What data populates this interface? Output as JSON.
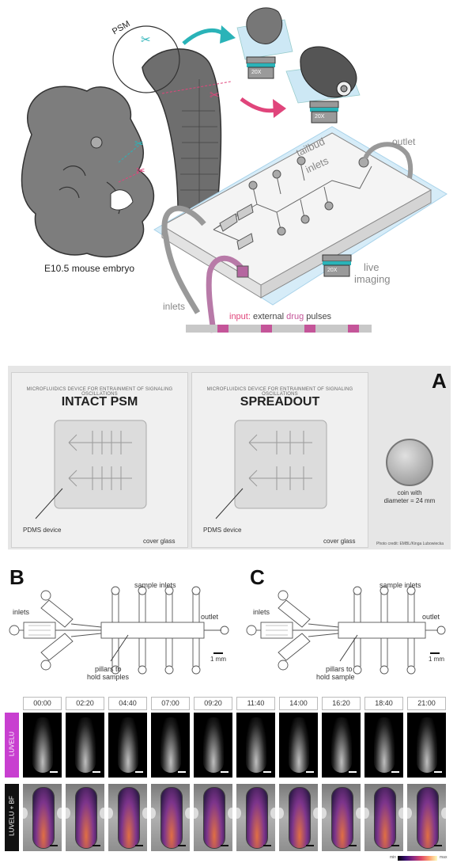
{
  "panel_top": {
    "psm_label": "PSM",
    "embryo_label": "E10.5 mouse embryo",
    "tailbud_label": "tailbud",
    "inlets_label_top": "inlets",
    "outlet_label": "outlet",
    "inlets_label": "inlets",
    "live_label": "live",
    "imaging_label": "imaging",
    "objective_1": "20X",
    "objective_2": "20X",
    "objective_3": "20X",
    "input_prefix": "input:",
    "input_middle": " external ",
    "input_drug": "drug",
    "input_suffix": " pulses",
    "accent_pink": "#e0457b",
    "accent_teal": "#2ab3b8"
  },
  "panel_a": {
    "letter": "A",
    "device1_header": "MICROFLUIDICS DEVICE FOR ENTRAINMENT OF SIGNALING OSCILLATIONS",
    "device1_name": "INTACT PSM",
    "device1_pdms": "PDMS device",
    "device1_cover": "cover glass",
    "device2_header": "MICROFLUIDICS DEVICE FOR ENTRAINMENT OF SIGNALING OSCILLATIONS",
    "device2_name": "SPREADOUT",
    "device2_pdms": "PDMS device",
    "device2_cover": "cover glass",
    "coin_label_1": "coin with",
    "coin_label_2": "diameter = 24 mm",
    "photo_credit": "Photo credit: EMBL/Kinga Lubowiecka"
  },
  "panel_b": {
    "letter": "B",
    "sample_inlets": "sample inlets",
    "inlets": "inlets",
    "outlet": "outlet",
    "scale": "1 mm",
    "pillars_1": "pillars to",
    "pillars_2": "hold samples"
  },
  "panel_c": {
    "letter": "C",
    "sample_inlets": "sample inlets",
    "inlets": "inlets",
    "outlet": "outlet",
    "scale": "1 mm",
    "pillars_1": "pillars to",
    "pillars_2": "hold sample"
  },
  "timelapse": {
    "times": [
      "00:00",
      "02:20",
      "04:40",
      "07:00",
      "09:20",
      "11:40",
      "14:00",
      "16:20",
      "18:40",
      "21:00"
    ],
    "row1_label": "LUVELU",
    "row2_label": "LUVELU + BF",
    "row1_color": "#c83fd0",
    "row2_color": "#111111",
    "cbar_min": "min",
    "cbar_max": "max"
  }
}
